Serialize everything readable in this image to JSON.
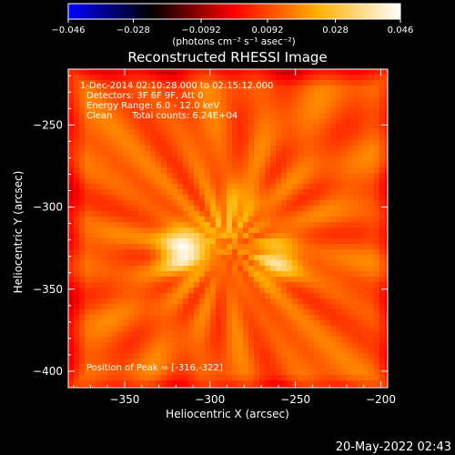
{
  "chart_data": {
    "type": "heatmap",
    "title": "Reconstructed RHESSI Image",
    "xlabel": "Heliocentric X (arcsec)",
    "ylabel": "Heliocentric Y (arcsec)",
    "xlim": [
      -383,
      -196
    ],
    "ylim": [
      -410,
      -216
    ],
    "xticks": [
      -350,
      -300,
      -250,
      -200
    ],
    "yticks": [
      -250,
      -300,
      -350,
      -400
    ],
    "xtick_labels": [
      "−350",
      "−300",
      "−250",
      "−200"
    ],
    "ytick_labels": [
      "−250",
      "−300",
      "−350",
      "−400"
    ],
    "colorbar": {
      "min": -0.046,
      "max": 0.046,
      "ticks": [
        -0.046,
        -0.028,
        -0.0092,
        0.0092,
        0.028,
        0.046
      ],
      "tick_labels": [
        "−0.046",
        "−0.028",
        "−0.0092",
        "0.0092",
        "0.028",
        "0.046"
      ],
      "units_label": "(photons cm⁻² s⁻¹ asec⁻²)",
      "colormap": [
        "#0000ff",
        "#000000",
        "#ff0000",
        "#ffb000",
        "#ffffff"
      ]
    },
    "sources": [
      {
        "x": -316,
        "y": -322,
        "peak": 0.046
      },
      {
        "x": -261,
        "y": -328,
        "peak": 0.033
      },
      {
        "x": -282,
        "y": -294,
        "peak": 0.022
      },
      {
        "x": -293,
        "y": -310,
        "peak": 0.02
      }
    ],
    "background_level": 0.012,
    "annotations": {
      "time_range": "1-Dec-2014 02:10:28.000 to 02:15:12.000",
      "detectors": "Detectors: 3F 6F 9F, Att 0",
      "energy": "Energy Range: 6.0 - 12.0 keV",
      "method": "Clean",
      "counts": "Total counts: 6.24E+04",
      "peak": "Position of Peak = [-316,-322]"
    },
    "timestamp": "20-May-2022 02:43"
  }
}
